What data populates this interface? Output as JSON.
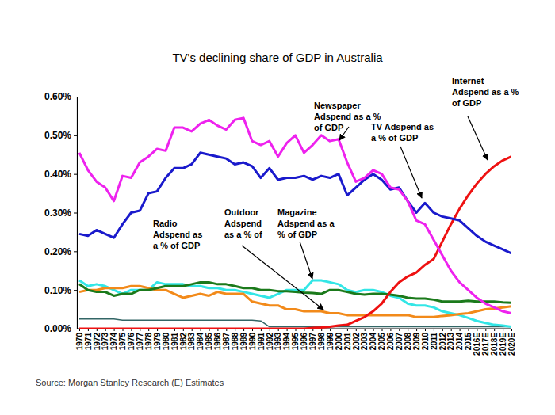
{
  "chart_data": {
    "type": "line",
    "title": "TV's declining share of GDP in Australia",
    "source": "Source: Morgan Stanley Research (E) Estimates",
    "categories": [
      "1970",
      "1971",
      "1972",
      "1973",
      "1974",
      "1975",
      "1976",
      "1977",
      "1978",
      "1979",
      "1980",
      "1981",
      "1982",
      "1983",
      "1984",
      "1985",
      "1986",
      "1987",
      "1988",
      "1989",
      "1990",
      "1991",
      "1992",
      "1993",
      "1994",
      "1995",
      "1996",
      "1997",
      "1998",
      "1999",
      "2000",
      "2001",
      "2002",
      "2003",
      "2004",
      "2005",
      "2006",
      "2007",
      "2008",
      "2009",
      "2010",
      "2011",
      "2012",
      "2013",
      "2014",
      "2015",
      "2016E",
      "2017E",
      "2018E",
      "2019E",
      "2020E"
    ],
    "ylim": [
      0,
      0.6
    ],
    "yticks": [
      {
        "value": 0,
        "label": "0.00%"
      },
      {
        "value": 0.1,
        "label": "0.10%"
      },
      {
        "value": 0.2,
        "label": "0.20%"
      },
      {
        "value": 0.3,
        "label": "0.30%"
      },
      {
        "value": 0.4,
        "label": "0.40%"
      },
      {
        "value": 0.5,
        "label": "0.50%"
      },
      {
        "value": 0.6,
        "label": "0.60%"
      }
    ],
    "grid": false,
    "series": [
      {
        "color": "#336666",
        "values": [
          0.025,
          0.025,
          0.025,
          0.025,
          0.025,
          0.022,
          0.022,
          0.022,
          0.022,
          0.022,
          0.022,
          0.022,
          0.022,
          0.022,
          0.022,
          0.022,
          0.022,
          0.022,
          0.022,
          0.022,
          0.022,
          0.02,
          0.005,
          0.005,
          0.005,
          0.005,
          0.005,
          0.005,
          0.005,
          0.005,
          0.005,
          0.005,
          0.005,
          0.005,
          0.005,
          0.005,
          0.005,
          0.005,
          0.005,
          0.005,
          0.005,
          0.005,
          0.005,
          0.005,
          0.005,
          0.005,
          0.005,
          0.005,
          0.005,
          0.005,
          0.005
        ]
      },
      {
        "color": "#33e6e6",
        "values": [
          0.125,
          0.11,
          0.115,
          0.11,
          0.1,
          0.09,
          0.1,
          0.1,
          0.1,
          0.12,
          0.115,
          0.115,
          0.115,
          0.11,
          0.11,
          0.105,
          0.105,
          0.1,
          0.1,
          0.095,
          0.09,
          0.085,
          0.08,
          0.09,
          0.1,
          0.1,
          0.1,
          0.125,
          0.125,
          0.12,
          0.115,
          0.1,
          0.095,
          0.1,
          0.1,
          0.095,
          0.085,
          0.08,
          0.065,
          0.06,
          0.06,
          0.055,
          0.045,
          0.04,
          0.035,
          0.028,
          0.02,
          0.015,
          0.01,
          0.008,
          0.005
        ]
      },
      {
        "color": "#f28a1a",
        "values": [
          0.095,
          0.1,
          0.1,
          0.105,
          0.105,
          0.105,
          0.11,
          0.11,
          0.105,
          0.1,
          0.1,
          0.09,
          0.08,
          0.085,
          0.09,
          0.085,
          0.095,
          0.09,
          0.09,
          0.09,
          0.07,
          0.065,
          0.06,
          0.06,
          0.05,
          0.05,
          0.045,
          0.045,
          0.045,
          0.04,
          0.04,
          0.035,
          0.035,
          0.035,
          0.035,
          0.035,
          0.035,
          0.035,
          0.035,
          0.03,
          0.03,
          0.03,
          0.033,
          0.035,
          0.038,
          0.04,
          0.045,
          0.05,
          0.052,
          0.055,
          0.058
        ]
      },
      {
        "color": "#1b7a1b",
        "values": [
          0.115,
          0.1,
          0.095,
          0.095,
          0.085,
          0.09,
          0.09,
          0.1,
          0.1,
          0.105,
          0.11,
          0.11,
          0.11,
          0.115,
          0.12,
          0.12,
          0.115,
          0.115,
          0.11,
          0.105,
          0.105,
          0.1,
          0.1,
          0.097,
          0.097,
          0.095,
          0.093,
          0.092,
          0.09,
          0.1,
          0.1,
          0.095,
          0.09,
          0.088,
          0.09,
          0.09,
          0.088,
          0.085,
          0.08,
          0.078,
          0.078,
          0.075,
          0.07,
          0.07,
          0.07,
          0.072,
          0.07,
          0.07,
          0.07,
          0.068,
          0.067
        ]
      },
      {
        "color": "#ee1111",
        "values": [
          0,
          0,
          0,
          0,
          0,
          0,
          0,
          0,
          0,
          0,
          0,
          0,
          0,
          0,
          0,
          0,
          0,
          0,
          0,
          0,
          0,
          0,
          0,
          0,
          0,
          0,
          0,
          0.002,
          0.003,
          0.005,
          0.008,
          0.01,
          0.02,
          0.03,
          0.045,
          0.065,
          0.095,
          0.12,
          0.135,
          0.145,
          0.165,
          0.18,
          0.225,
          0.27,
          0.31,
          0.345,
          0.375,
          0.4,
          0.42,
          0.435,
          0.445
        ]
      },
      {
        "color": "#1a1acc",
        "values": [
          0.245,
          0.24,
          0.255,
          0.245,
          0.235,
          0.27,
          0.3,
          0.305,
          0.35,
          0.355,
          0.39,
          0.415,
          0.415,
          0.425,
          0.455,
          0.45,
          0.445,
          0.44,
          0.425,
          0.43,
          0.42,
          0.39,
          0.415,
          0.385,
          0.39,
          0.39,
          0.395,
          0.385,
          0.395,
          0.39,
          0.4,
          0.345,
          0.365,
          0.385,
          0.4,
          0.385,
          0.36,
          0.365,
          0.33,
          0.3,
          0.325,
          0.3,
          0.29,
          0.285,
          0.28,
          0.26,
          0.24,
          0.225,
          0.215,
          0.205,
          0.195
        ]
      },
      {
        "color": "#ee22ee",
        "values": [
          0.455,
          0.41,
          0.38,
          0.365,
          0.33,
          0.395,
          0.39,
          0.43,
          0.445,
          0.465,
          0.46,
          0.52,
          0.52,
          0.51,
          0.53,
          0.54,
          0.525,
          0.515,
          0.54,
          0.545,
          0.485,
          0.475,
          0.485,
          0.445,
          0.48,
          0.5,
          0.455,
          0.475,
          0.5,
          0.485,
          0.49,
          0.43,
          0.38,
          0.39,
          0.41,
          0.4,
          0.365,
          0.36,
          0.33,
          0.28,
          0.27,
          0.23,
          0.19,
          0.15,
          0.12,
          0.1,
          0.08,
          0.065,
          0.055,
          0.045,
          0.04
        ]
      }
    ],
    "annotations": [
      {
        "text": [
          "Newspaper",
          "Adspend as a %",
          "of GDP"
        ]
      },
      {
        "text": [
          "Internet",
          "Adspend as a %",
          "of GDP"
        ]
      },
      {
        "text": [
          "TV Adspend as",
          "a % of GDP"
        ]
      },
      {
        "text": [
          "Radio",
          "Adspend as",
          "a % of GDP"
        ]
      },
      {
        "text": [
          "Outdoor",
          "Adspend",
          "as a % of"
        ]
      },
      {
        "text": [
          "Magazine",
          "Adspend as a",
          "% of GDP"
        ]
      }
    ]
  }
}
